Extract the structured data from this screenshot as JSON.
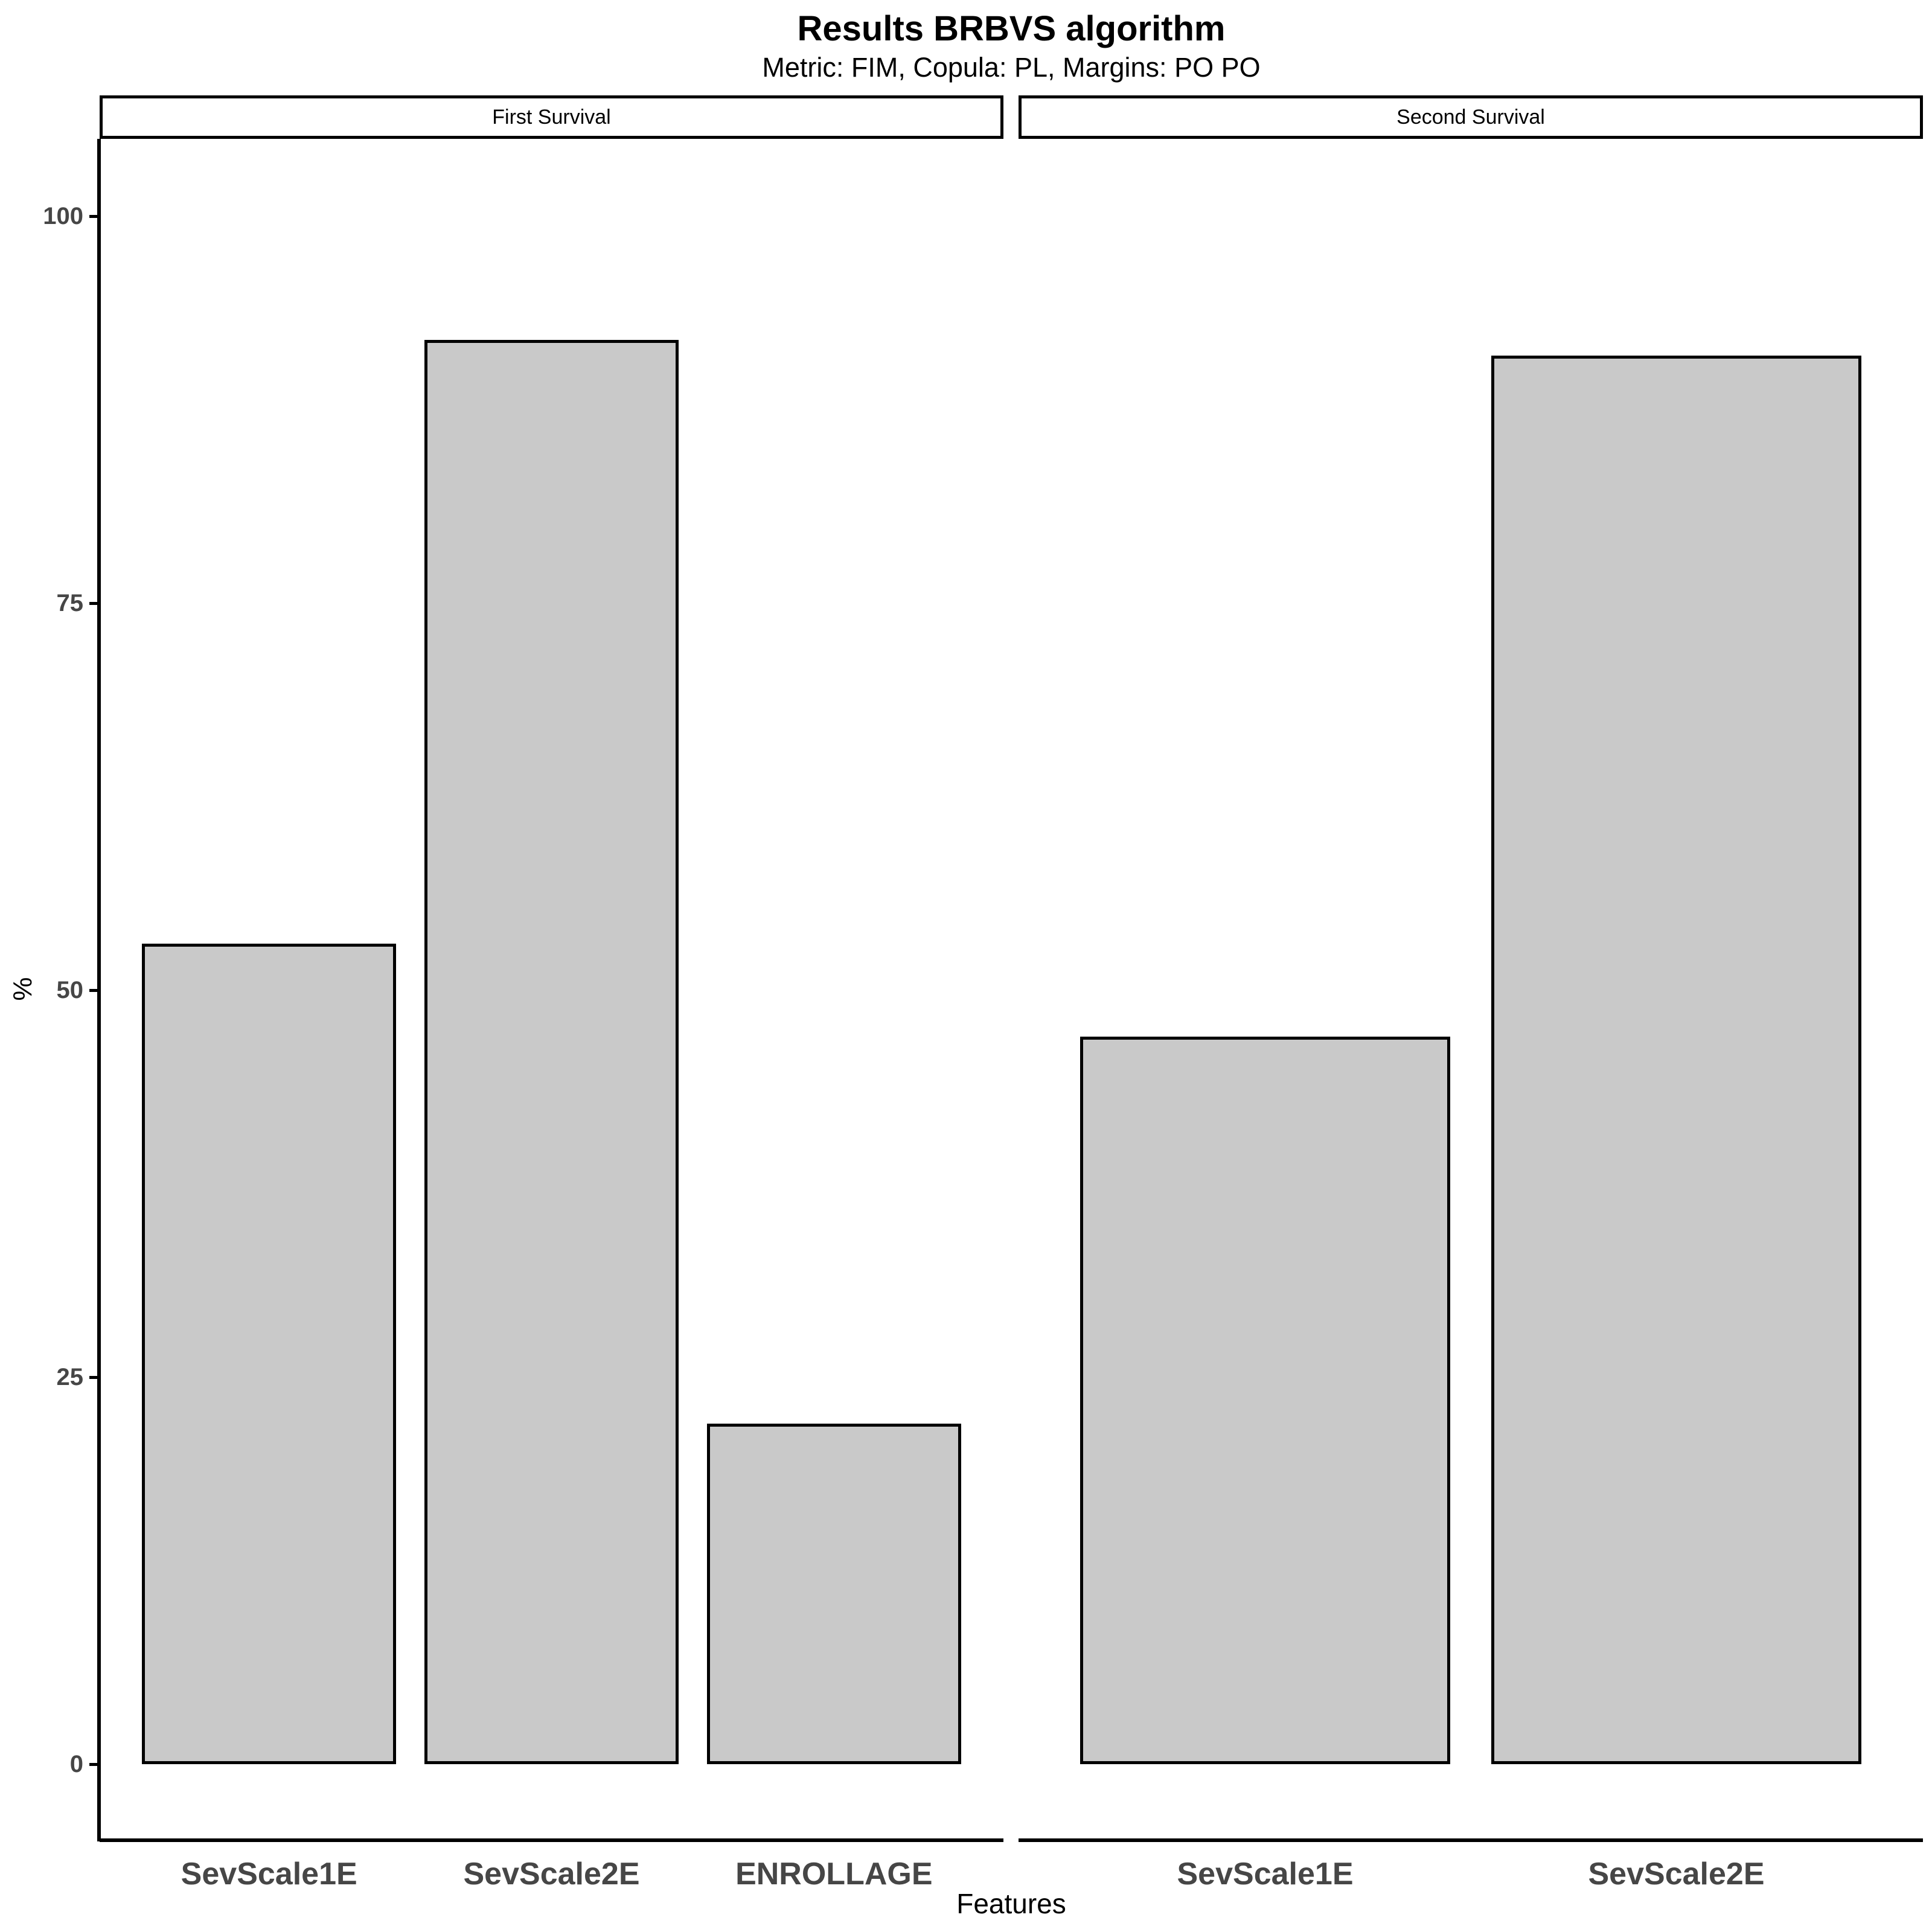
{
  "title": "Results BRBVS algorithm",
  "subtitle": "Metric: FIM, Copula: PL, Margins: PO PO",
  "y_axis": {
    "label": "%",
    "ticks": [
      0,
      25,
      50,
      75,
      100
    ]
  },
  "x_axis": {
    "label": "Features"
  },
  "colors": {
    "bar_fill": "#C9C9C9",
    "bar_stroke": "#000000",
    "axis_text": "#464646",
    "axis_line": "#000000"
  },
  "chart_data": {
    "type": "bar",
    "title": "Results BRBVS algorithm",
    "subtitle": "Metric: FIM, Copula: PL, Margins: PO PO",
    "xlabel": "Features",
    "ylabel": "%",
    "ylim": [
      0,
      100
    ],
    "yticks": [
      0,
      25,
      50,
      75,
      100
    ],
    "grid": false,
    "facets": [
      {
        "name": "First Survival",
        "categories": [
          "SevScale1E",
          "SevScale2E",
          "ENROLLAGE"
        ],
        "values": [
          53,
          92,
          22
        ]
      },
      {
        "name": "Second Survival",
        "categories": [
          "SevScale1E",
          "SevScale2E"
        ],
        "values": [
          47,
          91
        ]
      }
    ],
    "bar_fill": "#C9C9C9",
    "bar_stroke": "#000000"
  }
}
